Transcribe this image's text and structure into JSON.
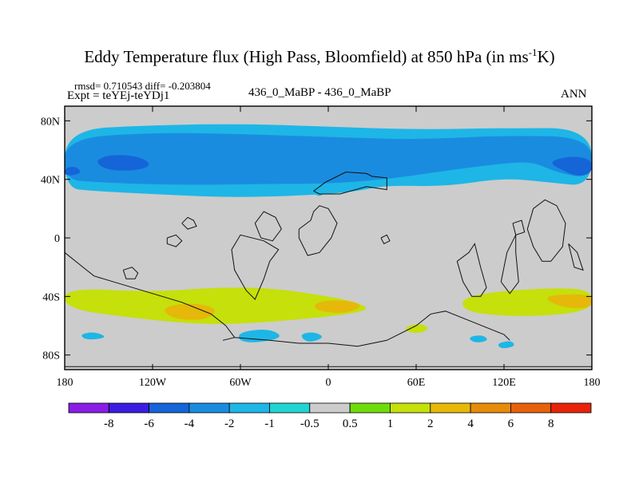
{
  "title": {
    "main": "Eddy Temperature flux (High Pass, Bloomfield) at 850 hPa (in ms",
    "exponent": "-1",
    "suffix": "K)"
  },
  "stats": {
    "rmsd": "rmsd= 0.710543 diff= -0.203804",
    "expt": "Expt = teYEj-teYDj1"
  },
  "case_label": "436_0_MaBP - 436_0_MaBP",
  "season": "ANN",
  "colors": {
    "neutral": "#cccccc",
    "levels": [
      "#8a1de5",
      "#3a1de0",
      "#1565d8",
      "#1a8ce0",
      "#1eb6e6",
      "#21d4d4",
      "#cccccc",
      "#6fdc0a",
      "#c5e00a",
      "#e6b80a",
      "#e68c0a",
      "#e6610a",
      "#e6230a"
    ]
  },
  "chart_data": {
    "type": "heatmap",
    "title": "Eddy Temperature flux (High Pass, Bloomfield) at 850 hPa (in ms-1K)",
    "xlabel": "",
    "ylabel": "",
    "xlim": [
      -180,
      180
    ],
    "ylim": [
      -90,
      90
    ],
    "x_ticks": [
      -180,
      -120,
      -60,
      0,
      60,
      120,
      180
    ],
    "x_tick_labels": [
      "180",
      "120W",
      "60W",
      "0",
      "60E",
      "120E",
      "180"
    ],
    "y_ticks": [
      80,
      40,
      0,
      -40,
      -80
    ],
    "y_tick_labels": [
      "80N",
      "40N",
      "0",
      "40S",
      "80S"
    ],
    "colorbar_labels": [
      "-8",
      "-6",
      "-4",
      "-2",
      "-1",
      "-0.5",
      "0.5",
      "1",
      "2",
      "4",
      "6",
      "8"
    ],
    "regions": [
      {
        "level": "-1",
        "points": [
          [
            -180,
            74
          ],
          [
            -120,
            77
          ],
          [
            -60,
            78
          ],
          [
            0,
            76
          ],
          [
            60,
            74
          ],
          [
            120,
            75
          ],
          [
            180,
            75
          ],
          [
            180,
            35
          ],
          [
            150,
            38
          ],
          [
            120,
            41
          ],
          [
            80,
            35
          ],
          [
            40,
            36
          ],
          [
            20,
            32
          ],
          [
            0,
            30
          ],
          [
            -40,
            28
          ],
          [
            -80,
            28
          ],
          [
            -120,
            30
          ],
          [
            -160,
            32
          ],
          [
            -180,
            34
          ]
        ]
      },
      {
        "level": "-2",
        "points": [
          [
            -180,
            68
          ],
          [
            -120,
            72
          ],
          [
            -60,
            71
          ],
          [
            0,
            69
          ],
          [
            60,
            67
          ],
          [
            120,
            70
          ],
          [
            180,
            69
          ],
          [
            180,
            40
          ],
          [
            155,
            45
          ],
          [
            140,
            52
          ],
          [
            120,
            51
          ],
          [
            80,
            46
          ],
          [
            40,
            40
          ],
          [
            0,
            37
          ],
          [
            -40,
            37
          ],
          [
            -100,
            36
          ],
          [
            -160,
            38
          ],
          [
            -180,
            40
          ]
        ]
      },
      {
        "level": "-4",
        "points": [
          [
            -160,
            52
          ],
          [
            -150,
            57
          ],
          [
            -130,
            56
          ],
          [
            -120,
            50
          ],
          [
            -130,
            46
          ],
          [
            -150,
            46
          ]
        ]
      },
      {
        "level": "-4",
        "points": [
          [
            150,
            52
          ],
          [
            165,
            56
          ],
          [
            180,
            54
          ],
          [
            180,
            44
          ],
          [
            170,
            42
          ],
          [
            160,
            46
          ]
        ]
      },
      {
        "level": "-4",
        "points": [
          [
            -180,
            48
          ],
          [
            -172,
            49
          ],
          [
            -168,
            44
          ],
          [
            -180,
            42
          ]
        ]
      },
      {
        "level": "-1",
        "points": [
          [
            -10,
            34
          ],
          [
            -4,
            35
          ],
          [
            -2,
            30
          ],
          [
            -8,
            28
          ]
        ]
      },
      {
        "level": "1",
        "points": [
          [
            -180,
            -34
          ],
          [
            -120,
            -37
          ],
          [
            -80,
            -34
          ],
          [
            -40,
            -34
          ],
          [
            0,
            -40
          ],
          [
            20,
            -44
          ],
          [
            30,
            -50
          ],
          [
            -20,
            -56
          ],
          [
            -80,
            -60
          ],
          [
            -140,
            -54
          ],
          [
            -180,
            -48
          ]
        ]
      },
      {
        "level": "2",
        "points": [
          [
            -115,
            -48
          ],
          [
            -95,
            -44
          ],
          [
            -75,
            -48
          ],
          [
            -82,
            -56
          ],
          [
            -105,
            -56
          ]
        ]
      },
      {
        "level": "2",
        "points": [
          [
            -10,
            -44
          ],
          [
            10,
            -42
          ],
          [
            25,
            -46
          ],
          [
            12,
            -52
          ],
          [
            -8,
            -50
          ]
        ]
      },
      {
        "level": "1",
        "points": [
          [
            95,
            -40
          ],
          [
            120,
            -36
          ],
          [
            160,
            -34
          ],
          [
            180,
            -36
          ],
          [
            180,
            -50
          ],
          [
            140,
            -54
          ],
          [
            100,
            -52
          ],
          [
            90,
            -46
          ]
        ]
      },
      {
        "level": "2",
        "points": [
          [
            145,
            -40
          ],
          [
            170,
            -38
          ],
          [
            180,
            -40
          ],
          [
            180,
            -48
          ],
          [
            160,
            -48
          ]
        ]
      },
      {
        "level": "1",
        "points": [
          [
            50,
            -62
          ],
          [
            62,
            -58
          ],
          [
            70,
            -62
          ],
          [
            60,
            -66
          ]
        ]
      },
      {
        "level": "-1",
        "points": [
          [
            -60,
            -64
          ],
          [
            -40,
            -62
          ],
          [
            -30,
            -68
          ],
          [
            -50,
            -72
          ],
          [
            -62,
            -70
          ]
        ]
      },
      {
        "level": "-1",
        "points": [
          [
            -20,
            -66
          ],
          [
            -10,
            -64
          ],
          [
            -2,
            -68
          ],
          [
            -14,
            -72
          ]
        ]
      },
      {
        "level": "-1",
        "points": [
          [
            -170,
            -66
          ],
          [
            -160,
            -64
          ],
          [
            -150,
            -68
          ],
          [
            -165,
            -70
          ]
        ]
      },
      {
        "level": "-1",
        "points": [
          [
            95,
            -68
          ],
          [
            105,
            -66
          ],
          [
            110,
            -70
          ],
          [
            100,
            -72
          ]
        ]
      },
      {
        "level": "-1",
        "points": [
          [
            115,
            -72
          ],
          [
            125,
            -70
          ],
          [
            128,
            -74
          ],
          [
            118,
            -76
          ]
        ]
      }
    ],
    "coastlines": [
      [
        [
          -10,
          32
        ],
        [
          -2,
          38
        ],
        [
          6,
          42
        ],
        [
          12,
          45
        ],
        [
          26,
          44
        ],
        [
          30,
          42
        ],
        [
          40,
          41
        ],
        [
          40,
          33
        ],
        [
          26,
          35
        ],
        [
          8,
          30
        ],
        [
          -6,
          30
        ],
        [
          -10,
          32
        ]
      ],
      [
        [
          -40,
          -16
        ],
        [
          -34,
          -8
        ],
        [
          -44,
          -2
        ],
        [
          -60,
          2
        ],
        [
          -66,
          -8
        ],
        [
          -64,
          -22
        ],
        [
          -56,
          -36
        ],
        [
          -50,
          -42
        ],
        [
          -44,
          -28
        ],
        [
          -40,
          -16
        ]
      ],
      [
        [
          -20,
          6
        ],
        [
          -12,
          12
        ],
        [
          -10,
          18
        ],
        [
          -6,
          22
        ],
        [
          0,
          20
        ],
        [
          6,
          10
        ],
        [
          2,
          0
        ],
        [
          -6,
          -10
        ],
        [
          -14,
          -12
        ],
        [
          -20,
          0
        ],
        [
          -20,
          6
        ]
      ],
      [
        [
          -100,
          10
        ],
        [
          -96,
          14
        ],
        [
          -92,
          12
        ],
        [
          -90,
          8
        ],
        [
          -96,
          6
        ],
        [
          -100,
          10
        ]
      ],
      [
        [
          -110,
          0
        ],
        [
          -104,
          2
        ],
        [
          -100,
          -2
        ],
        [
          -104,
          -6
        ],
        [
          -110,
          -4
        ],
        [
          -110,
          0
        ]
      ],
      [
        [
          -140,
          -22
        ],
        [
          -134,
          -20
        ],
        [
          -130,
          -24
        ],
        [
          -132,
          -28
        ],
        [
          -138,
          -28
        ],
        [
          -140,
          -22
        ]
      ],
      [
        [
          -50,
          10
        ],
        [
          -44,
          18
        ],
        [
          -36,
          14
        ],
        [
          -32,
          6
        ],
        [
          -38,
          -2
        ],
        [
          -46,
          0
        ],
        [
          -50,
          10
        ]
      ],
      [
        [
          -180,
          -10
        ],
        [
          -170,
          -18
        ],
        [
          -160,
          -26
        ],
        [
          -140,
          -32
        ],
        [
          -120,
          -38
        ],
        [
          -100,
          -44
        ],
        [
          -80,
          -52
        ],
        [
          -70,
          -60
        ],
        [
          -64,
          -68
        ],
        [
          -72,
          -70
        ]
      ],
      [
        [
          -64,
          -68
        ],
        [
          -40,
          -70
        ],
        [
          -20,
          -72
        ],
        [
          0,
          -72
        ],
        [
          20,
          -74
        ],
        [
          40,
          -70
        ],
        [
          60,
          -60
        ],
        [
          70,
          -52
        ],
        [
          80,
          -50
        ],
        [
          100,
          -58
        ],
        [
          120,
          -66
        ],
        [
          124,
          -70
        ]
      ],
      [
        [
          88,
          -16
        ],
        [
          96,
          -10
        ],
        [
          100,
          -4
        ],
        [
          104,
          -20
        ],
        [
          108,
          -34
        ],
        [
          104,
          -40
        ],
        [
          98,
          -40
        ],
        [
          92,
          -30
        ],
        [
          88,
          -16
        ]
      ],
      [
        [
          118,
          -30
        ],
        [
          122,
          -10
        ],
        [
          128,
          2
        ],
        [
          128,
          -10
        ],
        [
          130,
          -30
        ],
        [
          124,
          -38
        ],
        [
          118,
          -30
        ]
      ],
      [
        [
          140,
          20
        ],
        [
          148,
          26
        ],
        [
          156,
          22
        ],
        [
          162,
          10
        ],
        [
          160,
          -6
        ],
        [
          152,
          -16
        ],
        [
          146,
          -16
        ],
        [
          140,
          -6
        ],
        [
          136,
          6
        ],
        [
          140,
          20
        ]
      ],
      [
        [
          164,
          -4
        ],
        [
          170,
          -10
        ],
        [
          174,
          -22
        ],
        [
          168,
          -20
        ],
        [
          164,
          -4
        ]
      ],
      [
        [
          126,
          10
        ],
        [
          132,
          12
        ],
        [
          134,
          4
        ],
        [
          128,
          2
        ],
        [
          126,
          10
        ]
      ],
      [
        [
          36,
          0
        ],
        [
          40,
          2
        ],
        [
          42,
          -2
        ],
        [
          38,
          -4
        ],
        [
          36,
          0
        ]
      ],
      [
        [
          -180,
          -88
        ],
        [
          -120,
          -88
        ],
        [
          -60,
          -88
        ],
        [
          0,
          -88
        ],
        [
          60,
          -88
        ],
        [
          120,
          -88
        ],
        [
          180,
          -88
        ]
      ]
    ]
  }
}
